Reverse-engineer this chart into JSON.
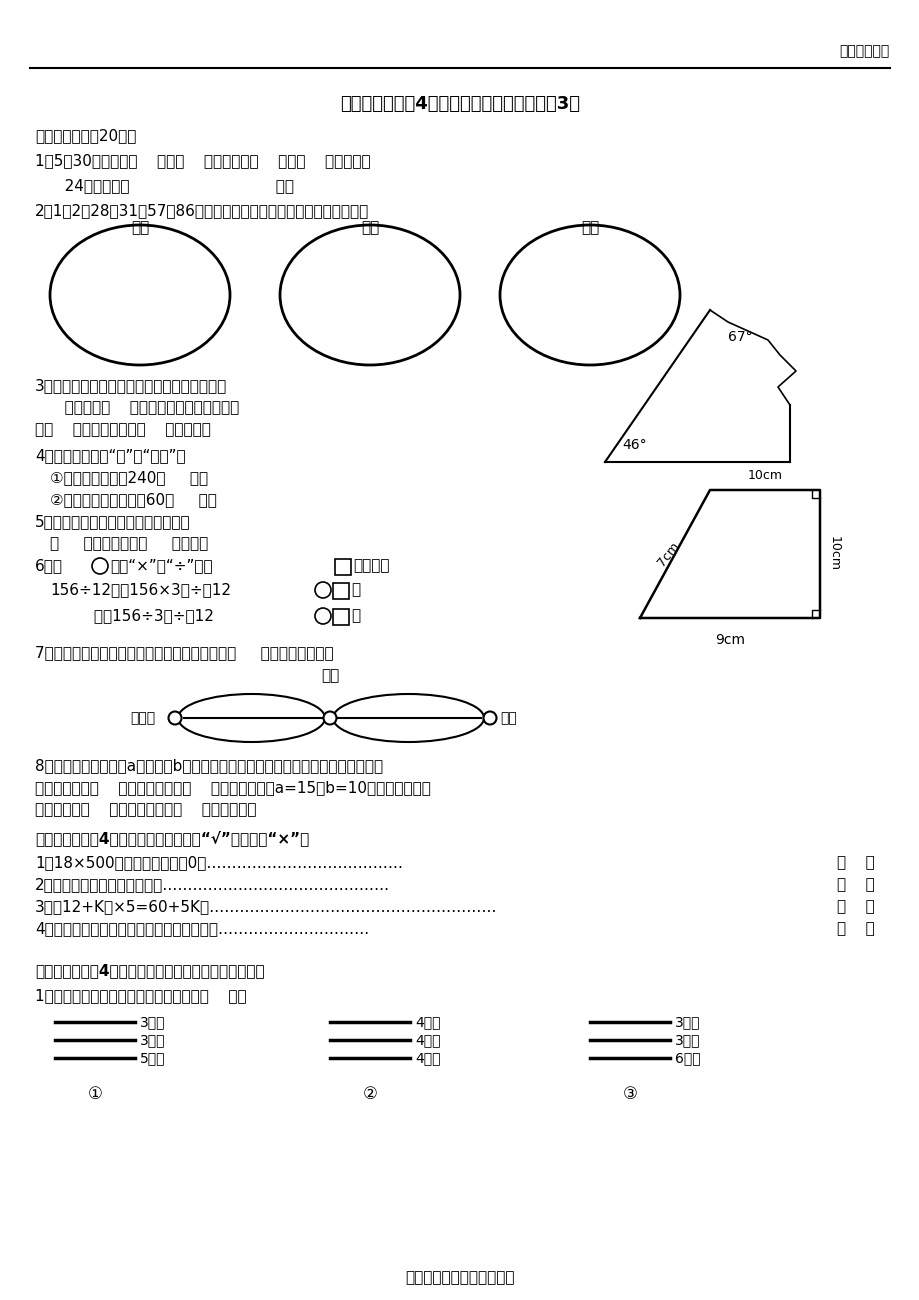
{
  "title": "苏教版小学数学4年级下册期末模拟测试题（3）",
  "header_right": "得艺数学培训",
  "footer": "得艺家教让您放心的好家教",
  "sec1_title": "一、谨慎填写（20分）",
  "q1": "1．5和30两个数，（    ）是（    ）的倍数，（    ）是（    ）的因数。",
  "q1b": "   24的因数有（                              ）。",
  "q2": "2．1、2、28、31、57和86这些数可以填入下面的哪些圈里？填一填。",
  "circle_labels": [
    "奇数",
    "素数",
    "合数"
  ],
  "q3a": "3．如右图，一块三角形纸片被撙去了一个角。",
  "q3b": "   这个角是（    ）度，原来这块纸片的形状",
  "q3c": "是（    ）三角形，也是（    ）三角形。",
  "q4": "4．在括号里填上“升”或“毫升”。",
  "q4a": "①一瓶椰子汁约有240（     ）。",
  "q4b": "②一个电热水器能盛汴60（     ）。",
  "q5": "5．右边梯形的上底与下底长度的和是",
  "q5b": "（     ）厘米，高是（     ）厘米。",
  "q6": "6．在",
  "q6b": "里填“×”或“÷”，在",
  "q6c": "里填数。",
  "q6d": "156÷12＝（156×3）÷（12",
  "q6e": "）",
  "q6f": "         ＝（156÷3）÷（12",
  "q7": "7．如图：小红从家出发，经过学校去超市，有（     ）条路可以选择。",
  "school_label": "学校",
  "home_label": "小红家",
  "market_label": "超市",
  "q8a": "8．一张长方形纸，长a厘米，宽b厘米。从这张纸上剪出一个最大的正方形，这个正",
  "q8b": "方形的周长是（    ）厘米，面积是（    ）平方厘米。当a=15，b=10时，原来长方形",
  "q8c": "纸的周长是（    ）厘米，面积是（    ）平方厘米。",
  "sec2_title": "二、准确判断（4分）（对的在括号内打“√”，错的打“×”）",
  "judge_q1": "1．18×500，积的末尾有两个0。…………………………………",
  "judge_q2": "2．梯形不可能是轴对称图形。………………………………………",
  "judge_q3": "3．（12+K）×5=60+5K。…………………………………………………",
  "judge_q4": "4．一个自然数越大，它的因数个数就越多。…………………………",
  "sec3_title": "三、慎重选择（4分）（把正确答案的序号填在括号里）",
  "sel_q1": "1．下面三组小棒，不能围成三角形的是（    ）。",
  "stick_g1": [
    "3厘米",
    "3厘米",
    "5厘米"
  ],
  "stick_g2": [
    "4厘米",
    "4厘米",
    "4厘米"
  ],
  "stick_g3": [
    "3厘米",
    "3厘米",
    "6厘米"
  ],
  "num_labels": [
    "①",
    "②",
    "③"
  ],
  "angle67": "67°",
  "angle46": "46°",
  "trap_top": "10cm",
  "trap_right": "10cm",
  "trap_left": "7cm",
  "trap_bottom": "9cm"
}
